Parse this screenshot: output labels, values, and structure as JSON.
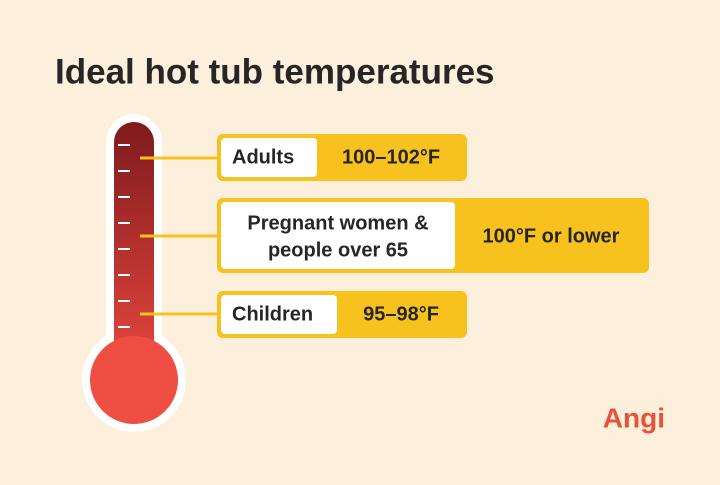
{
  "header": {
    "title": "Ideal hot tub temperatures"
  },
  "items": [
    {
      "label": [
        "Adults"
      ],
      "value": "100–102°F"
    },
    {
      "label": [
        "Pregnant women &",
        "people over 65"
      ],
      "value": "100°F or lower"
    },
    {
      "label": [
        "Children"
      ],
      "value": "95–98°F"
    }
  ],
  "brand": "Angi"
}
